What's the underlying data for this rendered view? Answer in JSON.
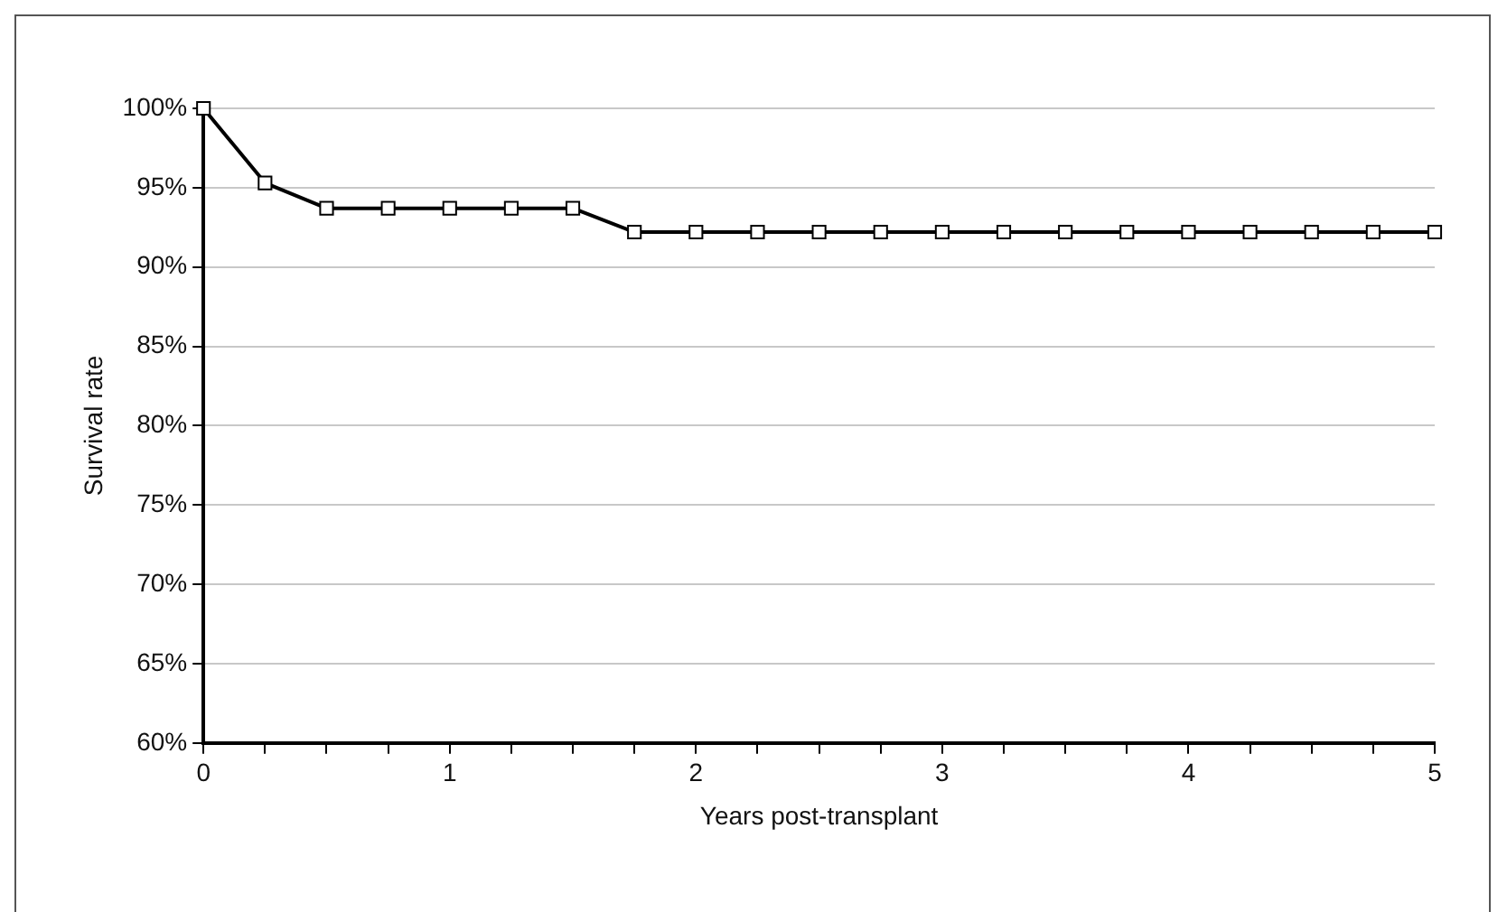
{
  "chart_data": {
    "type": "line",
    "xlabel": "Years post-transplant",
    "ylabel": "Survival rate",
    "x": [
      0,
      0.25,
      0.5,
      0.75,
      1,
      1.25,
      1.5,
      1.75,
      2,
      2.25,
      2.5,
      2.75,
      3,
      3.25,
      3.5,
      3.75,
      4,
      4.25,
      4.5,
      4.75,
      5
    ],
    "series": [
      {
        "color": "#000000",
        "values": [
          100,
          95.3,
          93.7,
          93.7,
          93.7,
          93.7,
          93.7,
          92.2,
          92.2,
          92.2,
          92.2,
          92.2,
          92.2,
          92.2,
          92.2,
          92.2,
          92.2,
          92.2,
          92.2,
          92.2,
          92.2
        ]
      }
    ],
    "xlim": [
      0,
      5
    ],
    "xticks": [
      0,
      {
        "value": 0.25,
        "label": null
      },
      {
        "value": 0.5,
        "label": null
      },
      {
        "value": 0.75,
        "label": null
      },
      1,
      {
        "value": 1.25,
        "label": null
      },
      {
        "value": 1.5,
        "label": null
      },
      {
        "value": 1.75,
        "label": null
      },
      2,
      {
        "value": 2.25,
        "label": null
      },
      {
        "value": 2.5,
        "label": null
      },
      {
        "value": 2.75,
        "label": null
      },
      3,
      {
        "value": 3.25,
        "label": null
      },
      {
        "value": 3.5,
        "label": null
      },
      {
        "value": 3.75,
        "label": null
      },
      4,
      {
        "value": 4.25,
        "label": null
      },
      {
        "value": 4.5,
        "label": null
      },
      {
        "value": 4.75,
        "label": null
      },
      5
    ],
    "ylim": [
      60,
      100
    ],
    "yticks": [
      {
        "value": 60,
        "label": "60%"
      },
      {
        "value": 65,
        "label": "65%"
      },
      {
        "value": 70,
        "label": "70%"
      },
      {
        "value": 75,
        "label": "75%"
      },
      {
        "value": 80,
        "label": "80%"
      },
      {
        "value": 85,
        "label": "85%"
      },
      {
        "value": 90,
        "label": "90%"
      },
      {
        "value": 95,
        "label": "95%"
      },
      {
        "value": 100,
        "label": "100%"
      }
    ],
    "grid": "y",
    "legend": false,
    "marker": "square",
    "line_style": "solid"
  }
}
